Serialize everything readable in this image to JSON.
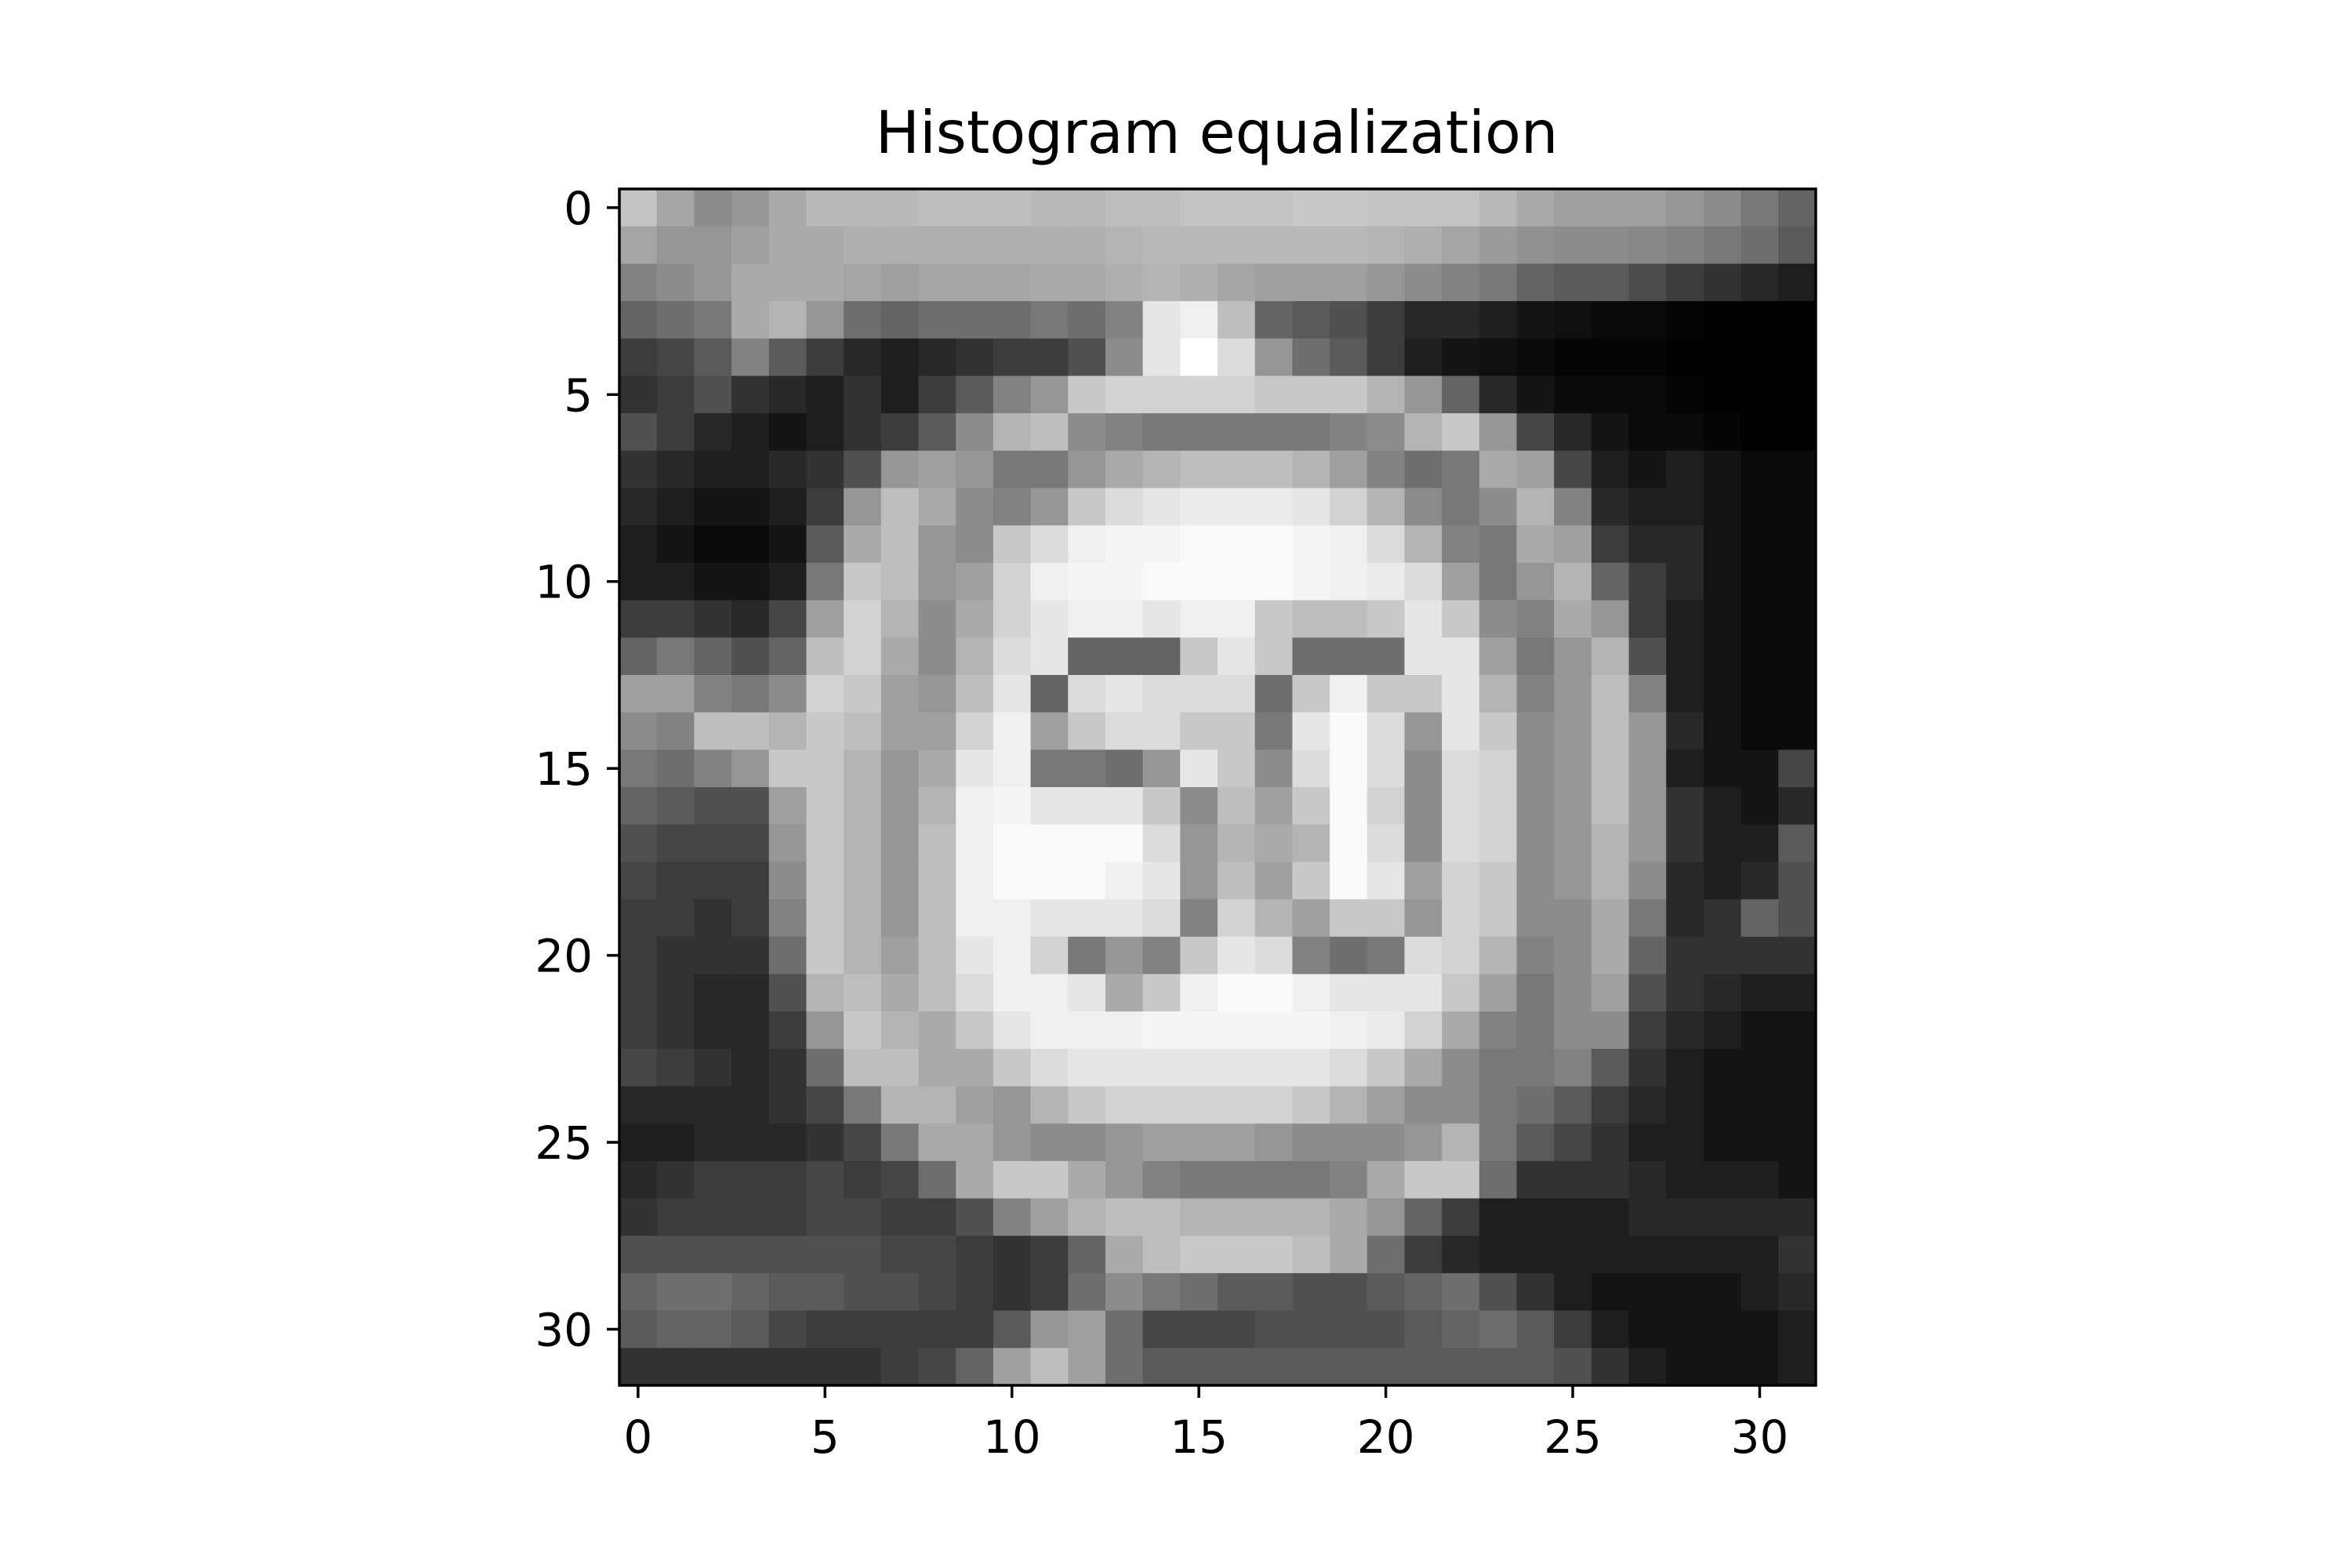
{
  "chart_data": {
    "type": "heatmap",
    "title": "Histogram equalization",
    "xlabel": "",
    "ylabel": "",
    "xlim": [
      -0.5,
      31.5
    ],
    "ylim": [
      31.5,
      -0.5
    ],
    "x_ticks": [
      0,
      5,
      10,
      15,
      20,
      25,
      30
    ],
    "y_ticks": [
      0,
      5,
      10,
      15,
      20,
      25,
      30
    ],
    "x_tick_labels": [
      "0",
      "5",
      "10",
      "15",
      "20",
      "25",
      "30"
    ],
    "y_tick_labels": [
      "0",
      "5",
      "10",
      "15",
      "20",
      "25",
      "30"
    ],
    "colormap": "gray",
    "value_range": [
      0,
      255
    ],
    "grid": false,
    "rows": 32,
    "cols": 32,
    "values": [
      [
        195,
        165,
        140,
        150,
        170,
        185,
        185,
        185,
        190,
        190,
        190,
        185,
        185,
        190,
        190,
        195,
        195,
        195,
        200,
        200,
        195,
        195,
        195,
        185,
        170,
        160,
        160,
        160,
        150,
        140,
        120,
        100
      ],
      [
        165,
        150,
        150,
        160,
        170,
        170,
        175,
        175,
        175,
        175,
        175,
        175,
        175,
        180,
        185,
        185,
        185,
        185,
        185,
        185,
        180,
        175,
        165,
        155,
        145,
        140,
        140,
        135,
        130,
        120,
        110,
        90
      ],
      [
        130,
        140,
        150,
        170,
        170,
        170,
        165,
        160,
        165,
        165,
        165,
        170,
        170,
        175,
        180,
        175,
        165,
        160,
        160,
        160,
        150,
        140,
        130,
        120,
        100,
        90,
        90,
        75,
        60,
        50,
        40,
        30
      ],
      [
        100,
        110,
        120,
        170,
        180,
        150,
        110,
        100,
        110,
        110,
        110,
        120,
        110,
        130,
        230,
        240,
        190,
        100,
        90,
        80,
        60,
        40,
        40,
        30,
        20,
        15,
        10,
        10,
        5,
        0,
        0,
        0
      ],
      [
        60,
        70,
        90,
        130,
        90,
        60,
        40,
        30,
        40,
        50,
        60,
        60,
        80,
        140,
        230,
        255,
        220,
        150,
        110,
        90,
        60,
        30,
        20,
        15,
        10,
        5,
        5,
        5,
        0,
        0,
        0,
        0
      ],
      [
        50,
        60,
        80,
        50,
        40,
        30,
        50,
        30,
        60,
        90,
        130,
        150,
        200,
        210,
        210,
        210,
        210,
        200,
        200,
        200,
        180,
        150,
        100,
        40,
        20,
        10,
        10,
        10,
        5,
        0,
        0,
        0
      ],
      [
        80,
        60,
        40,
        30,
        20,
        30,
        50,
        60,
        90,
        140,
        180,
        190,
        140,
        130,
        120,
        120,
        120,
        120,
        120,
        130,
        140,
        180,
        200,
        150,
        70,
        40,
        20,
        10,
        10,
        5,
        0,
        0
      ],
      [
        50,
        40,
        30,
        30,
        40,
        50,
        80,
        150,
        160,
        150,
        120,
        120,
        150,
        170,
        180,
        190,
        190,
        190,
        180,
        160,
        130,
        110,
        120,
        170,
        160,
        70,
        30,
        20,
        30,
        20,
        10,
        10
      ],
      [
        40,
        30,
        20,
        20,
        30,
        60,
        150,
        190,
        170,
        140,
        130,
        150,
        200,
        220,
        230,
        235,
        235,
        235,
        230,
        210,
        180,
        140,
        120,
        140,
        180,
        130,
        40,
        30,
        30,
        20,
        10,
        10
      ],
      [
        30,
        20,
        10,
        10,
        20,
        90,
        170,
        190,
        150,
        140,
        200,
        220,
        240,
        245,
        245,
        250,
        250,
        250,
        245,
        240,
        220,
        180,
        130,
        120,
        170,
        160,
        60,
        40,
        40,
        20,
        10,
        10
      ],
      [
        30,
        30,
        20,
        20,
        30,
        120,
        200,
        190,
        150,
        160,
        210,
        240,
        245,
        245,
        250,
        250,
        250,
        250,
        245,
        240,
        235,
        220,
        160,
        120,
        150,
        180,
        100,
        60,
        40,
        20,
        10,
        10
      ],
      [
        60,
        60,
        50,
        40,
        70,
        160,
        210,
        180,
        140,
        170,
        210,
        230,
        240,
        240,
        230,
        240,
        240,
        200,
        190,
        190,
        200,
        230,
        200,
        140,
        130,
        170,
        150,
        60,
        30,
        20,
        10,
        10
      ],
      [
        100,
        120,
        100,
        80,
        100,
        190,
        210,
        170,
        140,
        180,
        220,
        230,
        100,
        100,
        100,
        200,
        230,
        200,
        110,
        110,
        110,
        230,
        230,
        160,
        120,
        150,
        180,
        80,
        30,
        20,
        10,
        10
      ],
      [
        160,
        160,
        130,
        120,
        140,
        210,
        200,
        160,
        150,
        190,
        230,
        100,
        220,
        230,
        220,
        220,
        220,
        110,
        200,
        240,
        200,
        200,
        230,
        180,
        130,
        150,
        190,
        130,
        30,
        20,
        10,
        10
      ],
      [
        140,
        130,
        190,
        190,
        180,
        200,
        190,
        160,
        160,
        210,
        240,
        160,
        200,
        220,
        220,
        200,
        200,
        120,
        230,
        250,
        220,
        150,
        230,
        200,
        140,
        150,
        190,
        150,
        40,
        20,
        10,
        10
      ],
      [
        120,
        110,
        130,
        150,
        200,
        200,
        180,
        150,
        170,
        230,
        240,
        120,
        120,
        110,
        150,
        230,
        200,
        140,
        220,
        250,
        220,
        140,
        220,
        210,
        140,
        150,
        190,
        150,
        30,
        20,
        20,
        70
      ],
      [
        100,
        90,
        80,
        80,
        160,
        200,
        180,
        150,
        180,
        240,
        245,
        230,
        230,
        230,
        200,
        140,
        190,
        160,
        200,
        250,
        210,
        140,
        220,
        210,
        140,
        150,
        190,
        150,
        50,
        30,
        20,
        40
      ],
      [
        80,
        70,
        70,
        70,
        150,
        200,
        180,
        150,
        190,
        240,
        250,
        250,
        250,
        250,
        220,
        150,
        180,
        170,
        180,
        250,
        220,
        140,
        220,
        210,
        140,
        150,
        180,
        150,
        50,
        30,
        30,
        90
      ],
      [
        70,
        60,
        60,
        60,
        140,
        200,
        180,
        150,
        190,
        240,
        250,
        250,
        250,
        240,
        230,
        150,
        190,
        160,
        200,
        250,
        230,
        160,
        210,
        200,
        140,
        150,
        180,
        140,
        40,
        30,
        40,
        80
      ],
      [
        60,
        60,
        50,
        60,
        130,
        200,
        180,
        150,
        190,
        240,
        240,
        230,
        230,
        230,
        220,
        130,
        210,
        180,
        160,
        200,
        200,
        150,
        210,
        200,
        140,
        140,
        170,
        120,
        40,
        50,
        100,
        80
      ],
      [
        60,
        50,
        50,
        50,
        110,
        200,
        180,
        160,
        190,
        230,
        240,
        210,
        120,
        150,
        130,
        200,
        230,
        220,
        130,
        110,
        120,
        220,
        210,
        180,
        130,
        140,
        170,
        100,
        50,
        50,
        50,
        50
      ],
      [
        60,
        50,
        40,
        40,
        80,
        180,
        190,
        170,
        190,
        220,
        240,
        240,
        230,
        170,
        200,
        240,
        250,
        250,
        240,
        230,
        230,
        230,
        200,
        160,
        120,
        140,
        160,
        80,
        50,
        40,
        30,
        30
      ],
      [
        60,
        50,
        40,
        40,
        60,
        150,
        200,
        180,
        170,
        200,
        230,
        240,
        240,
        240,
        245,
        245,
        245,
        245,
        245,
        240,
        235,
        210,
        170,
        130,
        120,
        140,
        140,
        60,
        40,
        30,
        20,
        20
      ],
      [
        70,
        60,
        50,
        40,
        50,
        110,
        190,
        190,
        170,
        170,
        200,
        220,
        230,
        230,
        230,
        230,
        230,
        230,
        230,
        220,
        200,
        170,
        140,
        120,
        120,
        130,
        90,
        50,
        30,
        20,
        20,
        20
      ],
      [
        40,
        40,
        40,
        40,
        50,
        70,
        120,
        180,
        180,
        160,
        150,
        180,
        200,
        210,
        210,
        210,
        210,
        210,
        200,
        180,
        160,
        140,
        140,
        120,
        110,
        90,
        60,
        40,
        30,
        20,
        20,
        20
      ],
      [
        30,
        30,
        40,
        40,
        40,
        50,
        70,
        120,
        170,
        170,
        150,
        140,
        140,
        150,
        160,
        160,
        160,
        150,
        140,
        140,
        140,
        150,
        180,
        120,
        90,
        70,
        50,
        30,
        30,
        20,
        20,
        20
      ],
      [
        40,
        50,
        60,
        60,
        60,
        70,
        60,
        70,
        110,
        170,
        200,
        200,
        170,
        150,
        130,
        120,
        120,
        120,
        120,
        130,
        170,
        200,
        200,
        110,
        50,
        50,
        50,
        40,
        30,
        30,
        30,
        20
      ],
      [
        50,
        60,
        60,
        60,
        60,
        70,
        70,
        60,
        60,
        80,
        130,
        160,
        180,
        190,
        190,
        180,
        180,
        180,
        180,
        170,
        150,
        100,
        60,
        30,
        30,
        30,
        30,
        40,
        40,
        40,
        40,
        40
      ],
      [
        80,
        80,
        80,
        80,
        80,
        80,
        80,
        70,
        70,
        60,
        50,
        60,
        100,
        170,
        190,
        200,
        200,
        200,
        190,
        170,
        110,
        60,
        40,
        30,
        30,
        30,
        30,
        30,
        30,
        30,
        30,
        50
      ],
      [
        100,
        110,
        110,
        100,
        90,
        90,
        80,
        80,
        70,
        60,
        50,
        60,
        110,
        140,
        120,
        110,
        90,
        90,
        80,
        80,
        90,
        100,
        110,
        80,
        50,
        30,
        20,
        20,
        20,
        20,
        30,
        40
      ],
      [
        90,
        100,
        100,
        90,
        70,
        60,
        60,
        60,
        60,
        60,
        90,
        150,
        160,
        110,
        70,
        70,
        70,
        80,
        80,
        80,
        80,
        90,
        100,
        110,
        90,
        60,
        30,
        20,
        20,
        20,
        20,
        30
      ],
      [
        50,
        50,
        50,
        50,
        50,
        50,
        50,
        60,
        70,
        100,
        160,
        190,
        160,
        110,
        90,
        90,
        90,
        90,
        90,
        90,
        90,
        90,
        90,
        90,
        90,
        80,
        50,
        30,
        20,
        20,
        20,
        30
      ]
    ]
  }
}
